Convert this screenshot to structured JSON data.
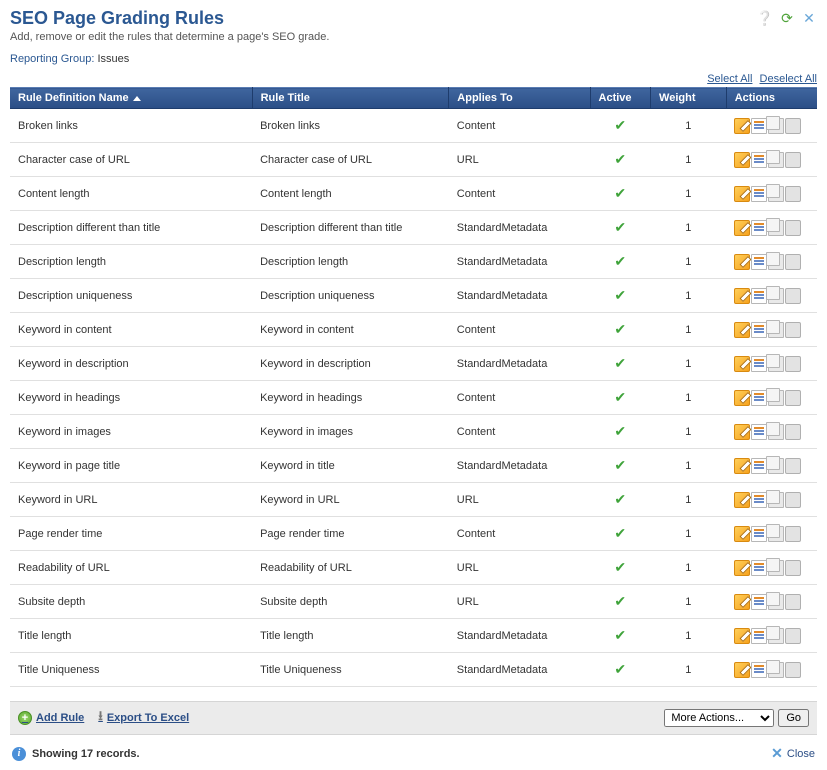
{
  "header": {
    "title": "SEO Page Grading Rules",
    "subtitle": "Add, remove or edit the rules that determine a page's SEO grade.",
    "reporting_group_label": "Reporting Group:",
    "reporting_group_value": "Issues"
  },
  "toolbar_links": {
    "select_all": "Select All",
    "deselect_all": "Deselect All"
  },
  "columns": {
    "name": "Rule Definition Name",
    "title": "Rule Title",
    "applies": "Applies To",
    "active": "Active",
    "weight": "Weight",
    "actions": "Actions"
  },
  "rows": [
    {
      "name": "Broken links",
      "title": "Broken links",
      "applies": "Content",
      "active": true,
      "weight": "1"
    },
    {
      "name": "Character case of URL",
      "title": "Character case of URL",
      "applies": "URL",
      "active": true,
      "weight": "1"
    },
    {
      "name": "Content length",
      "title": "Content length",
      "applies": "Content",
      "active": true,
      "weight": "1"
    },
    {
      "name": "Description different than title",
      "title": "Description different than title",
      "applies": "StandardMetadata",
      "active": true,
      "weight": "1"
    },
    {
      "name": "Description length",
      "title": "Description length",
      "applies": "StandardMetadata",
      "active": true,
      "weight": "1"
    },
    {
      "name": "Description uniqueness",
      "title": "Description uniqueness",
      "applies": "StandardMetadata",
      "active": true,
      "weight": "1"
    },
    {
      "name": "Keyword in content",
      "title": "Keyword in content",
      "applies": "Content",
      "active": true,
      "weight": "1"
    },
    {
      "name": "Keyword in description",
      "title": "Keyword in description",
      "applies": "StandardMetadata",
      "active": true,
      "weight": "1"
    },
    {
      "name": "Keyword in headings",
      "title": "Keyword in headings",
      "applies": "Content",
      "active": true,
      "weight": "1"
    },
    {
      "name": "Keyword in images",
      "title": "Keyword in images",
      "applies": "Content",
      "active": true,
      "weight": "1"
    },
    {
      "name": "Keyword in page title",
      "title": "Keyword in title",
      "applies": "StandardMetadata",
      "active": true,
      "weight": "1"
    },
    {
      "name": "Keyword in URL",
      "title": "Keyword in URL",
      "applies": "URL",
      "active": true,
      "weight": "1"
    },
    {
      "name": "Page render time",
      "title": "Page render time",
      "applies": "Content",
      "active": true,
      "weight": "1"
    },
    {
      "name": "Readability of URL",
      "title": "Readability of URL",
      "applies": "URL",
      "active": true,
      "weight": "1"
    },
    {
      "name": "Subsite depth",
      "title": "Subsite depth",
      "applies": "URL",
      "active": true,
      "weight": "1"
    },
    {
      "name": "Title length",
      "title": "Title length",
      "applies": "StandardMetadata",
      "active": true,
      "weight": "1"
    },
    {
      "name": "Title Uniqueness",
      "title": "Title Uniqueness",
      "applies": "StandardMetadata",
      "active": true,
      "weight": "1"
    }
  ],
  "footer": {
    "add_rule": "Add Rule",
    "export_excel": "Export To Excel",
    "more_actions_selected": "More Actions...",
    "go": "Go"
  },
  "status": {
    "showing": "Showing 17 records.",
    "close": "Close"
  }
}
